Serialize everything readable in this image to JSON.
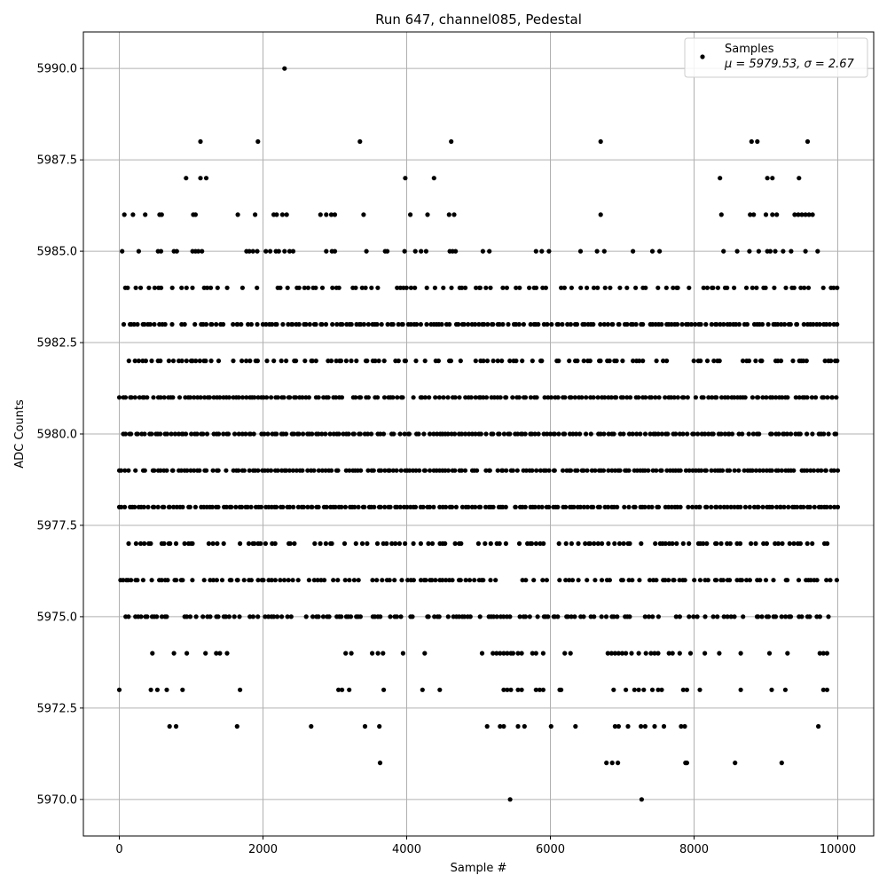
{
  "chart_data": {
    "type": "scatter",
    "title": "Run 647, channel085, Pedestal",
    "xlabel": "Sample #",
    "ylabel": "ADC Counts",
    "xlim": [
      -500,
      10500
    ],
    "ylim": [
      5969.0,
      5991.0
    ],
    "xticks": [
      0,
      2000,
      4000,
      6000,
      8000,
      10000
    ],
    "xtick_labels": [
      "0",
      "2000",
      "4000",
      "6000",
      "8000",
      "10000"
    ],
    "yticks": [
      5970.0,
      5972.5,
      5975.0,
      5977.5,
      5980.0,
      5982.5,
      5985.0,
      5987.5,
      5990.0
    ],
    "ytick_labels": [
      "5970.0",
      "5972.5",
      "5975.0",
      "5977.5",
      "5980.0",
      "5982.5",
      "5985.0",
      "5987.5",
      "5990.0"
    ],
    "grid": true,
    "legend": {
      "placement": "top-right",
      "label": "Samples",
      "stats_line": "μ = 5979.53, σ = 2.67"
    },
    "series": [
      {
        "name": "Samples",
        "color": "#000000",
        "marker": "circle",
        "level_density": {
          "5978": 0.97,
          "5979": 0.93,
          "5980": 0.9,
          "5981": 0.88,
          "5983": 0.85,
          "5975": 0.62,
          "5976": 0.58,
          "5977": 0.55,
          "5982": 0.55,
          "5984": 0.5
        },
        "sparse_points": [
          [
            2300,
            5990
          ],
          [
            1130,
            5988
          ],
          [
            1930,
            5988
          ],
          [
            3350,
            5988
          ],
          [
            4620,
            5988
          ],
          [
            6700,
            5988
          ],
          [
            8800,
            5988
          ],
          [
            8880,
            5988
          ],
          [
            9580,
            5988
          ],
          [
            930,
            5987
          ],
          [
            1130,
            5987
          ],
          [
            1210,
            5987
          ],
          [
            3980,
            5987
          ],
          [
            4380,
            5987
          ],
          [
            8360,
            5987
          ],
          [
            9020,
            5987
          ],
          [
            9090,
            5987
          ],
          [
            9460,
            5987
          ],
          [
            70,
            5986
          ],
          [
            190,
            5986
          ],
          [
            360,
            5986
          ],
          [
            560,
            5986
          ],
          [
            590,
            5986
          ],
          [
            1030,
            5986
          ],
          [
            1060,
            5986
          ],
          [
            1650,
            5986
          ],
          [
            1890,
            5986
          ],
          [
            2150,
            5986
          ],
          [
            2190,
            5986
          ],
          [
            2270,
            5986
          ],
          [
            2330,
            5986
          ],
          [
            2800,
            5986
          ],
          [
            2880,
            5986
          ],
          [
            2950,
            5986
          ],
          [
            3000,
            5986
          ],
          [
            3400,
            5986
          ],
          [
            4050,
            5986
          ],
          [
            4290,
            5986
          ],
          [
            4590,
            5986
          ],
          [
            4660,
            5986
          ],
          [
            6700,
            5986
          ],
          [
            8380,
            5986
          ],
          [
            8780,
            5986
          ],
          [
            8830,
            5986
          ],
          [
            9000,
            5986
          ],
          [
            9090,
            5986
          ],
          [
            9150,
            5986
          ],
          [
            9400,
            5986
          ],
          [
            9450,
            5986
          ],
          [
            9500,
            5986
          ],
          [
            9550,
            5986
          ],
          [
            9600,
            5986
          ],
          [
            9650,
            5986
          ],
          [
            40,
            5985
          ],
          [
            270,
            5985
          ],
          [
            540,
            5985
          ],
          [
            580,
            5985
          ],
          [
            760,
            5985
          ],
          [
            800,
            5985
          ],
          [
            1020,
            5985
          ],
          [
            1060,
            5985
          ],
          [
            1100,
            5985
          ],
          [
            1150,
            5985
          ],
          [
            1770,
            5985
          ],
          [
            1810,
            5985
          ],
          [
            1860,
            5985
          ],
          [
            1920,
            5985
          ],
          [
            2040,
            5985
          ],
          [
            2100,
            5985
          ],
          [
            2180,
            5985
          ],
          [
            2220,
            5985
          ],
          [
            2300,
            5985
          ],
          [
            2370,
            5985
          ],
          [
            2420,
            5985
          ],
          [
            2880,
            5985
          ],
          [
            2960,
            5985
          ],
          [
            3000,
            5985
          ],
          [
            3440,
            5985
          ],
          [
            3700,
            5985
          ],
          [
            3730,
            5985
          ],
          [
            3970,
            5985
          ],
          [
            4120,
            5985
          ],
          [
            4200,
            5985
          ],
          [
            4270,
            5985
          ],
          [
            4600,
            5985
          ],
          [
            4640,
            5985
          ],
          [
            4680,
            5985
          ],
          [
            5060,
            5985
          ],
          [
            5150,
            5985
          ],
          [
            5800,
            5985
          ],
          [
            5880,
            5985
          ],
          [
            5980,
            5985
          ],
          [
            6420,
            5985
          ],
          [
            6650,
            5985
          ],
          [
            6750,
            5985
          ],
          [
            7150,
            5985
          ],
          [
            7420,
            5985
          ],
          [
            7520,
            5985
          ],
          [
            8410,
            5985
          ],
          [
            8600,
            5985
          ],
          [
            8770,
            5985
          ],
          [
            8900,
            5985
          ],
          [
            9020,
            5985
          ],
          [
            9060,
            5985
          ],
          [
            9130,
            5985
          ],
          [
            9240,
            5985
          ],
          [
            9350,
            5985
          ],
          [
            9550,
            5985
          ],
          [
            9720,
            5985
          ],
          [
            460,
            5974
          ],
          [
            760,
            5974
          ],
          [
            940,
            5974
          ],
          [
            1200,
            5974
          ],
          [
            1350,
            5974
          ],
          [
            1400,
            5974
          ],
          [
            1500,
            5974
          ],
          [
            3150,
            5974
          ],
          [
            3230,
            5974
          ],
          [
            3520,
            5974
          ],
          [
            3600,
            5974
          ],
          [
            3670,
            5974
          ],
          [
            3950,
            5974
          ],
          [
            4250,
            5974
          ],
          [
            5050,
            5974
          ],
          [
            5200,
            5974
          ],
          [
            5250,
            5974
          ],
          [
            5300,
            5974
          ],
          [
            5350,
            5974
          ],
          [
            5400,
            5974
          ],
          [
            5450,
            5974
          ],
          [
            5480,
            5974
          ],
          [
            5550,
            5974
          ],
          [
            5600,
            5974
          ],
          [
            5750,
            5974
          ],
          [
            5800,
            5974
          ],
          [
            5900,
            5974
          ],
          [
            6200,
            5974
          ],
          [
            6280,
            5974
          ],
          [
            6800,
            5974
          ],
          [
            6850,
            5974
          ],
          [
            6900,
            5974
          ],
          [
            6950,
            5974
          ],
          [
            7000,
            5974
          ],
          [
            7050,
            5974
          ],
          [
            7130,
            5974
          ],
          [
            7230,
            5974
          ],
          [
            7330,
            5974
          ],
          [
            7400,
            5974
          ],
          [
            7450,
            5974
          ],
          [
            7500,
            5974
          ],
          [
            7650,
            5974
          ],
          [
            7700,
            5974
          ],
          [
            7800,
            5974
          ],
          [
            7950,
            5974
          ],
          [
            8150,
            5974
          ],
          [
            8350,
            5974
          ],
          [
            8650,
            5974
          ],
          [
            9050,
            5974
          ],
          [
            9300,
            5974
          ],
          [
            9750,
            5974
          ],
          [
            9800,
            5974
          ],
          [
            9850,
            5974
          ],
          [
            0,
            5973
          ],
          [
            440,
            5973
          ],
          [
            530,
            5973
          ],
          [
            660,
            5973
          ],
          [
            880,
            5973
          ],
          [
            1680,
            5973
          ],
          [
            3050,
            5973
          ],
          [
            3100,
            5973
          ],
          [
            3200,
            5973
          ],
          [
            3680,
            5973
          ],
          [
            4220,
            5973
          ],
          [
            4460,
            5973
          ],
          [
            5350,
            5973
          ],
          [
            5400,
            5973
          ],
          [
            5450,
            5973
          ],
          [
            5550,
            5973
          ],
          [
            5600,
            5973
          ],
          [
            5800,
            5973
          ],
          [
            5850,
            5973
          ],
          [
            5900,
            5973
          ],
          [
            6130,
            5973
          ],
          [
            6150,
            5973
          ],
          [
            6880,
            5973
          ],
          [
            7050,
            5973
          ],
          [
            7170,
            5973
          ],
          [
            7230,
            5973
          ],
          [
            7300,
            5973
          ],
          [
            7420,
            5973
          ],
          [
            7500,
            5973
          ],
          [
            7550,
            5973
          ],
          [
            7850,
            5973
          ],
          [
            7900,
            5973
          ],
          [
            8080,
            5973
          ],
          [
            8650,
            5973
          ],
          [
            9080,
            5973
          ],
          [
            9270,
            5973
          ],
          [
            9800,
            5973
          ],
          [
            9850,
            5973
          ],
          [
            700,
            5972
          ],
          [
            790,
            5972
          ],
          [
            1640,
            5972
          ],
          [
            2670,
            5972
          ],
          [
            3420,
            5972
          ],
          [
            3620,
            5972
          ],
          [
            5120,
            5972
          ],
          [
            5300,
            5972
          ],
          [
            5350,
            5972
          ],
          [
            5550,
            5972
          ],
          [
            5640,
            5972
          ],
          [
            6010,
            5972
          ],
          [
            6350,
            5972
          ],
          [
            6900,
            5972
          ],
          [
            6950,
            5972
          ],
          [
            7080,
            5972
          ],
          [
            7260,
            5972
          ],
          [
            7320,
            5972
          ],
          [
            7450,
            5972
          ],
          [
            7580,
            5972
          ],
          [
            7820,
            5972
          ],
          [
            7870,
            5972
          ],
          [
            9730,
            5972
          ],
          [
            3630,
            5971
          ],
          [
            6780,
            5971
          ],
          [
            6860,
            5971
          ],
          [
            6940,
            5971
          ],
          [
            7880,
            5971
          ],
          [
            7900,
            5971
          ],
          [
            8570,
            5971
          ],
          [
            9220,
            5971
          ],
          [
            5440,
            5970
          ],
          [
            7270,
            5970
          ]
        ]
      }
    ]
  }
}
